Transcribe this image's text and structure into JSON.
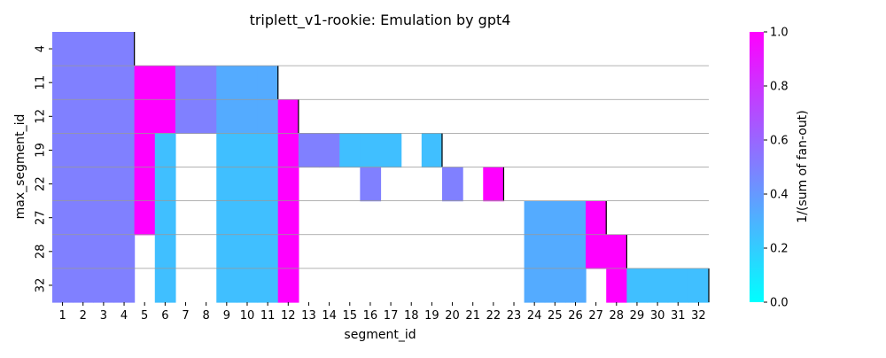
{
  "chart_data": {
    "type": "heatmap",
    "title": "triplett_v1-rookie: Emulation by gpt4",
    "xlabel": "segment_id",
    "ylabel": "max_segment_id",
    "x_categories": [
      "1",
      "2",
      "3",
      "4",
      "5",
      "6",
      "7",
      "8",
      "9",
      "10",
      "11",
      "12",
      "13",
      "14",
      "15",
      "16",
      "17",
      "18",
      "19",
      "20",
      "21",
      "22",
      "23",
      "24",
      "25",
      "26",
      "27",
      "28",
      "29",
      "30",
      "31",
      "32"
    ],
    "y_categories": [
      "4",
      "11",
      "12",
      "19",
      "22",
      "27",
      "28",
      "32"
    ],
    "rows": [
      {
        "max_segment_id": "4",
        "values": [
          0.5,
          0.5,
          0.5,
          0.5,
          null,
          null,
          null,
          null,
          null,
          null,
          null,
          null,
          null,
          null,
          null,
          null,
          null,
          null,
          null,
          null,
          null,
          null,
          null,
          null,
          null,
          null,
          null,
          null,
          null,
          null,
          null,
          null
        ]
      },
      {
        "max_segment_id": "11",
        "values": [
          0.5,
          0.5,
          0.5,
          0.5,
          1.0,
          1.0,
          0.5,
          0.5,
          0.33,
          0.33,
          0.33,
          null,
          null,
          null,
          null,
          null,
          null,
          null,
          null,
          null,
          null,
          null,
          null,
          null,
          null,
          null,
          null,
          null,
          null,
          null,
          null,
          null
        ]
      },
      {
        "max_segment_id": "12",
        "values": [
          0.5,
          0.5,
          0.5,
          0.5,
          1.0,
          1.0,
          0.5,
          0.5,
          0.33,
          0.33,
          0.33,
          1.0,
          null,
          null,
          null,
          null,
          null,
          null,
          null,
          null,
          null,
          null,
          null,
          null,
          null,
          null,
          null,
          null,
          null,
          null,
          null,
          null
        ]
      },
      {
        "max_segment_id": "19",
        "values": [
          0.5,
          0.5,
          0.5,
          0.5,
          1.0,
          0.25,
          null,
          null,
          0.25,
          0.25,
          0.25,
          1.0,
          0.5,
          0.5,
          0.25,
          0.25,
          0.25,
          null,
          0.25,
          null,
          null,
          null,
          null,
          null,
          null,
          null,
          null,
          null,
          null,
          null,
          null,
          null
        ]
      },
      {
        "max_segment_id": "22",
        "values": [
          0.5,
          0.5,
          0.5,
          0.5,
          1.0,
          0.25,
          null,
          null,
          0.25,
          0.25,
          0.25,
          1.0,
          null,
          null,
          null,
          0.5,
          null,
          null,
          null,
          0.5,
          null,
          1.0,
          null,
          null,
          null,
          null,
          null,
          null,
          null,
          null,
          null,
          null
        ]
      },
      {
        "max_segment_id": "27",
        "values": [
          0.5,
          0.5,
          0.5,
          0.5,
          1.0,
          0.25,
          null,
          null,
          0.25,
          0.25,
          0.25,
          1.0,
          null,
          null,
          null,
          null,
          null,
          null,
          null,
          null,
          null,
          null,
          null,
          0.33,
          0.33,
          0.33,
          1.0,
          null,
          null,
          null,
          null,
          null
        ]
      },
      {
        "max_segment_id": "28",
        "values": [
          0.5,
          0.5,
          0.5,
          0.5,
          null,
          0.25,
          null,
          null,
          0.25,
          0.25,
          0.25,
          1.0,
          null,
          null,
          null,
          null,
          null,
          null,
          null,
          null,
          null,
          null,
          null,
          0.33,
          0.33,
          0.33,
          1.0,
          1.0,
          null,
          null,
          null,
          null
        ]
      },
      {
        "max_segment_id": "32",
        "values": [
          0.5,
          0.5,
          0.5,
          0.5,
          null,
          0.25,
          null,
          null,
          0.25,
          0.25,
          0.25,
          1.0,
          null,
          null,
          null,
          null,
          null,
          null,
          null,
          null,
          null,
          null,
          null,
          0.33,
          0.33,
          0.33,
          null,
          1.0,
          0.25,
          0.25,
          0.25,
          0.25
        ]
      }
    ],
    "colorbar": {
      "label": "1/(sum of fan-out)",
      "range": [
        0.0,
        1.0
      ],
      "ticks": [
        "0.0",
        "0.2",
        "0.4",
        "0.6",
        "0.8",
        "1.0"
      ],
      "colormap": [
        "#00ffff",
        "#ff00ff"
      ]
    },
    "grid": "horizontal separators between rows"
  }
}
